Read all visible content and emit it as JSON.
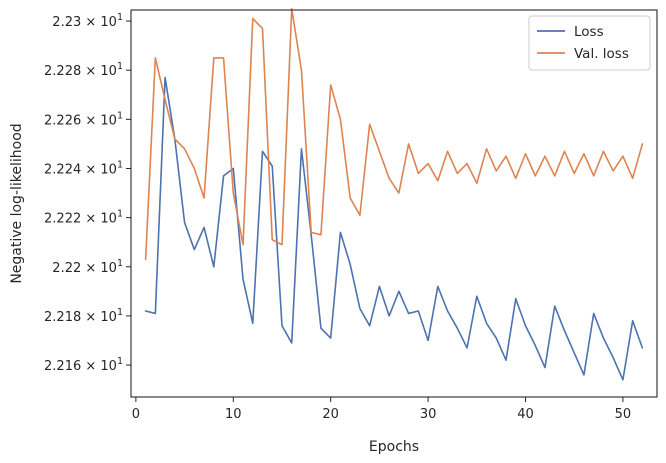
{
  "chart_data": {
    "type": "line",
    "xlabel": "Epochs",
    "ylabel": "Negative log-likelihood",
    "xlim": [
      -0.5,
      53.5
    ],
    "ylim": [
      22.147,
      22.3045
    ],
    "xticks": [
      0,
      10,
      20,
      30,
      40,
      50
    ],
    "xtick_labels": [
      "0",
      "10",
      "20",
      "30",
      "40",
      "50"
    ],
    "yticks": [
      22.16,
      22.18,
      22.2,
      22.22,
      22.24,
      22.26,
      22.28,
      22.3
    ],
    "ytick_labels": [
      {
        "mantissa": "2.216",
        "base": "10",
        "exp": "1"
      },
      {
        "mantissa": "2.218",
        "base": "10",
        "exp": "1"
      },
      {
        "mantissa": "2.22",
        "base": "10",
        "exp": "1"
      },
      {
        "mantissa": "2.222",
        "base": "10",
        "exp": "1"
      },
      {
        "mantissa": "2.224",
        "base": "10",
        "exp": "1"
      },
      {
        "mantissa": "2.226",
        "base": "10",
        "exp": "1"
      },
      {
        "mantissa": "2.228",
        "base": "10",
        "exp": "1"
      },
      {
        "mantissa": "2.23",
        "base": "10",
        "exp": "1"
      }
    ],
    "grid": false,
    "legend_position": "top-right",
    "x": [
      1,
      2,
      3,
      4,
      5,
      6,
      7,
      8,
      9,
      10,
      11,
      12,
      13,
      14,
      15,
      16,
      17,
      18,
      19,
      20,
      21,
      22,
      23,
      24,
      25,
      26,
      27,
      28,
      29,
      30,
      31,
      32,
      33,
      34,
      35,
      36,
      37,
      38,
      39,
      40,
      41,
      42,
      43,
      44,
      45,
      46,
      47,
      48,
      49,
      50,
      51,
      52
    ],
    "series": [
      {
        "name": "Loss",
        "color": "#4c72b0",
        "values": [
          22.182,
          22.181,
          22.277,
          22.252,
          22.218,
          22.207,
          22.216,
          22.2,
          22.237,
          22.24,
          22.195,
          22.177,
          22.247,
          22.241,
          22.176,
          22.169,
          22.248,
          22.213,
          22.175,
          22.171,
          22.214,
          22.201,
          22.183,
          22.176,
          22.192,
          22.18,
          22.19,
          22.181,
          22.182,
          22.17,
          22.192,
          22.182,
          22.175,
          22.167,
          22.188,
          22.177,
          22.171,
          22.162,
          22.187,
          22.176,
          22.168,
          22.159,
          22.184,
          22.174,
          22.165,
          22.156,
          22.181,
          22.171,
          22.163,
          22.154,
          22.178,
          22.167
        ]
      },
      {
        "name": "Val. loss",
        "color": "#dd8452",
        "values": [
          22.203,
          22.285,
          22.268,
          22.252,
          22.248,
          22.24,
          22.228,
          22.285,
          22.285,
          22.23,
          22.209,
          22.301,
          22.297,
          22.211,
          22.209,
          22.305,
          22.28,
          22.214,
          22.213,
          22.274,
          22.26,
          22.228,
          22.221,
          22.258,
          22.247,
          22.236,
          22.23,
          22.25,
          22.238,
          22.242,
          22.235,
          22.247,
          22.238,
          22.242,
          22.234,
          22.248,
          22.239,
          22.245,
          22.236,
          22.246,
          22.237,
          22.245,
          22.237,
          22.247,
          22.238,
          22.246,
          22.237,
          22.247,
          22.239,
          22.245,
          22.236,
          22.25
        ]
      }
    ]
  }
}
